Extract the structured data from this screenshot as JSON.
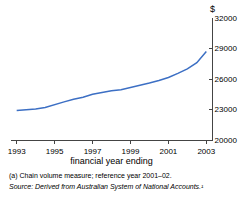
{
  "chart_data": {
    "type": "line",
    "x": [
      1993,
      1993.5,
      1994,
      1994.5,
      1995,
      1995.5,
      1996,
      1996.5,
      1997,
      1997.5,
      1998,
      1998.5,
      1999,
      1999.5,
      2000,
      2000.5,
      2001,
      2001.5,
      2002,
      2002.5,
      2003
    ],
    "values": [
      22900,
      22950,
      23050,
      23200,
      23500,
      23750,
      24000,
      24200,
      24500,
      24700,
      24850,
      24950,
      25150,
      25350,
      25600,
      25850,
      26150,
      26550,
      27000,
      27600,
      28700
    ],
    "color": "#3c6fc4",
    "xlabel": "financial year ending",
    "ylabel": "$",
    "xlim": [
      1992.7,
      2003.3
    ],
    "xticks": [
      1993,
      1995,
      1997,
      1999,
      2001,
      2003
    ],
    "ylim": [
      20000,
      32000
    ],
    "yticks": [
      20000,
      23000,
      26000,
      29000,
      32000
    ],
    "grid": false,
    "annotations": [
      "(a) Chain volume measure; reference year 2001–02.",
      "Source: Derived from Australian System of National Accounts.¹"
    ]
  }
}
